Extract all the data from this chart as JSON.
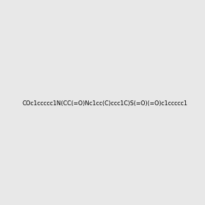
{
  "smiles": "COc1ccccc1N(CC(=O)Nc1cc(C)ccc1C)S(=O)(=O)c1ccccc1",
  "image_size": 300,
  "background_color": "#e8e8e8",
  "title": ""
}
